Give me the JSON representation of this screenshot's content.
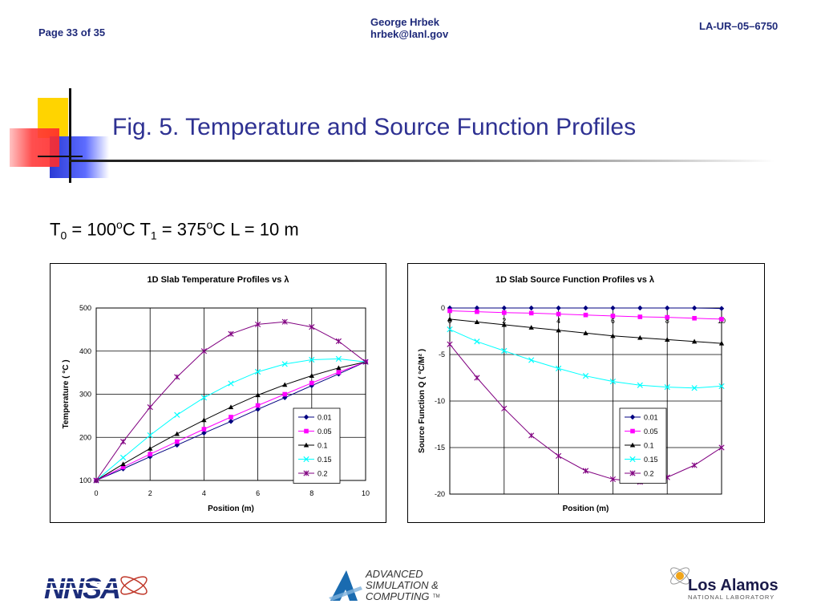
{
  "header": {
    "page": "Page 33 of 35",
    "author_name": "George Hrbek",
    "author_email": "hrbek@lanl.gov",
    "doc_code": "LA-UR–05–6750"
  },
  "slide": {
    "title": "Fig. 5. Temperature and Source Function Profiles",
    "params": {
      "t0_var": "T",
      "t0_sub": "0",
      "t0_val": " = 100",
      "t0_deg": "o",
      "t0_unit": "C  ",
      "t1_var": "T",
      "t1_sub": "1",
      "t1_val": " = 375",
      "t1_deg": "o",
      "t1_unit": "C  ",
      "length": "L = 10 m"
    }
  },
  "colors": {
    "title": "#2e3192",
    "header_text": "#1f2a7a",
    "series": [
      "#000080",
      "#ff00ff",
      "#000000",
      "#00ffff",
      "#800080"
    ]
  },
  "chart_data": [
    {
      "type": "line",
      "title": "1D Slab Temperature Profiles vs λ",
      "xlabel": "Position (m)",
      "ylabel": "Temperature (   °C )",
      "xlim": [
        0,
        10
      ],
      "ylim": [
        100,
        500
      ],
      "xticks": [
        "0",
        "2",
        "4",
        "6",
        "8",
        "10"
      ],
      "yticks": [
        "100",
        "200",
        "300",
        "400",
        "500"
      ],
      "grid": true,
      "legend": "bottom-right",
      "x": [
        0,
        1,
        2,
        3,
        4,
        5,
        6,
        7,
        8,
        9,
        10
      ],
      "series": [
        {
          "name": "0.01",
          "marker": "diamond",
          "values": [
            100,
            127,
            155,
            182,
            210,
            237,
            265,
            292,
            320,
            347,
            375
          ]
        },
        {
          "name": "0.05",
          "marker": "square",
          "values": [
            100,
            131,
            161,
            190,
            219,
            247,
            274,
            300,
            326,
            351,
            375
          ]
        },
        {
          "name": "0.1",
          "marker": "triangle",
          "values": [
            100,
            138,
            174,
            208,
            240,
            270,
            298,
            322,
            343,
            361,
            375
          ]
        },
        {
          "name": "0.15",
          "marker": "x",
          "values": [
            100,
            153,
            205,
            252,
            292,
            325,
            352,
            370,
            380,
            382,
            375
          ]
        },
        {
          "name": "0.2",
          "marker": "star",
          "values": [
            100,
            190,
            270,
            340,
            400,
            440,
            462,
            468,
            456,
            423,
            375
          ]
        }
      ]
    },
    {
      "type": "line",
      "title": "1D Slab Source Function Profiles vs λ",
      "xlabel": "Position (m)",
      "ylabel": "Source Function Q (   °C/M² )",
      "xlim": [
        0,
        10
      ],
      "ylim": [
        -20,
        0
      ],
      "xticks": [
        "0",
        "2",
        "4",
        "6",
        "8",
        "10"
      ],
      "yticks": [
        "0",
        "-5",
        "-10",
        "-15",
        "-20"
      ],
      "grid": true,
      "legend": "bottom-right",
      "x": [
        0,
        1,
        2,
        3,
        4,
        5,
        6,
        7,
        8,
        9,
        10
      ],
      "series": [
        {
          "name": "0.01",
          "marker": "diamond",
          "values": [
            0,
            0,
            0,
            0,
            0,
            0,
            0,
            0,
            0,
            0,
            -0.05
          ]
        },
        {
          "name": "0.05",
          "marker": "square",
          "values": [
            -0.3,
            -0.4,
            -0.5,
            -0.55,
            -0.65,
            -0.75,
            -0.85,
            -0.95,
            -1.0,
            -1.1,
            -1.2
          ]
        },
        {
          "name": "0.1",
          "marker": "triangle",
          "values": [
            -1.2,
            -1.5,
            -1.8,
            -2.1,
            -2.4,
            -2.7,
            -3.0,
            -3.2,
            -3.4,
            -3.6,
            -3.8
          ]
        },
        {
          "name": "0.15",
          "marker": "x",
          "values": [
            -2.3,
            -3.6,
            -4.6,
            -5.6,
            -6.5,
            -7.3,
            -7.9,
            -8.3,
            -8.5,
            -8.6,
            -8.4
          ]
        },
        {
          "name": "0.2",
          "marker": "star",
          "values": [
            -3.9,
            -7.5,
            -10.8,
            -13.7,
            -15.9,
            -17.5,
            -18.4,
            -18.7,
            -18.2,
            -16.9,
            -15.0
          ]
        }
      ]
    }
  ],
  "footer": {
    "logo1": "NNSA",
    "logo2_line1": "ADVANCED",
    "logo2_line2": "SIMULATION &",
    "logo2_line3": "COMPUTING",
    "logo2_tm": "TM",
    "logo3_name": "Los Alamos",
    "logo3_sub": "NATIONAL LABORATORY"
  }
}
